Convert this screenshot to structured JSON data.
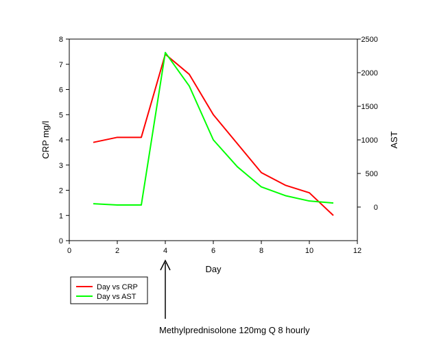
{
  "chart_data": {
    "type": "line",
    "title": "",
    "xlabel": "Day",
    "ylabel": "CRP mg/l",
    "y2label": "AST",
    "xlim": [
      0,
      12
    ],
    "ylim": [
      0,
      8
    ],
    "y2lim": [
      -500,
      2500
    ],
    "xticks": [
      "0",
      "2",
      "4",
      "6",
      "8",
      "10",
      "12"
    ],
    "yticks": [
      "0",
      "1",
      "2",
      "3",
      "4",
      "5",
      "6",
      "7",
      "8"
    ],
    "y2ticks": [
      "0",
      "500",
      "1000",
      "1500",
      "2000",
      "2500"
    ],
    "grid": false,
    "legend_position": "bottom-left",
    "series": [
      {
        "name": "Day vs CRP",
        "axis": "left",
        "color": "#ff0000",
        "x": [
          1,
          2,
          3,
          4,
          5,
          6,
          7,
          8,
          9,
          10,
          11
        ],
        "values": [
          3.9,
          4.1,
          4.1,
          7.4,
          6.6,
          5.0,
          3.85,
          2.7,
          2.2,
          1.9,
          1.0
        ]
      },
      {
        "name": "Day vs AST",
        "axis": "right",
        "color": "#00ff00",
        "x": [
          1,
          2,
          3,
          4,
          5,
          6,
          7,
          8,
          9,
          10,
          11
        ],
        "values": [
          50,
          30,
          30,
          2300,
          1800,
          1000,
          600,
          300,
          170,
          90,
          60
        ]
      }
    ],
    "annotation": {
      "text": "Methylprednisolone 120mg Q 8 hourly",
      "x": 4
    }
  }
}
